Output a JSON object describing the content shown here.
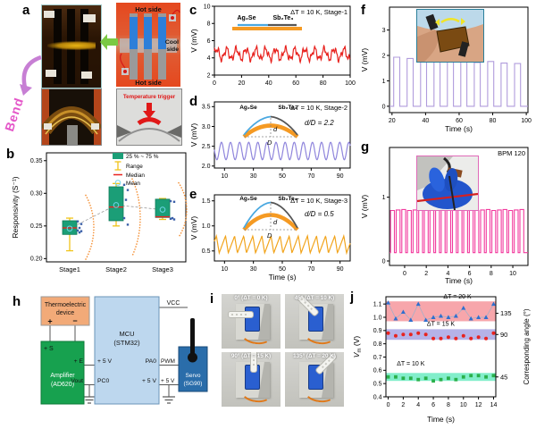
{
  "panel_labels": {
    "a": "a",
    "b": "b",
    "c": "c",
    "d": "d",
    "e": "e",
    "f": "f",
    "g": "g",
    "h": "h",
    "i": "i",
    "j": "j"
  },
  "panel_a": {
    "bend_label": "Bend",
    "hot_side_top": "Hot side",
    "hot_side_bottom": "Hot side",
    "cool_side_line1": "Cool",
    "cool_side_line2": "side",
    "temperature_trigger": "Temperature trigger"
  },
  "panel_h": {
    "thermo_line1": "Thermoelectric",
    "thermo_line2": "device",
    "plus": "+",
    "minus": "−",
    "amp_pin_s": "+ S",
    "amp_line1": "Amplifier",
    "amp_line2": "(AD620)",
    "amp_pin_e": "+ E",
    "amp_pin_vout": "Vout",
    "mcu_line1": "MCU",
    "mcu_line2": "(STM32)",
    "mcu_pin_5v_left": "+ 5 V",
    "mcu_pin_pc0": "PC0",
    "mcu_vcc": "VCC",
    "mcu_pin_pa0": "PA0",
    "mcu_pin_5v_right": "+ 5 V",
    "servo_pin_pwm": "PWM",
    "servo_pin_5v": "+ 5 V",
    "servo_line1": "Servo",
    "servo_line2": "(SG90)"
  },
  "panel_i": {
    "captions": [
      "0° (ΔT = 0 K)",
      "45° (ΔT = 10 K)",
      "90° (ΔT = 15 K)",
      "135° (ΔT = 20 K)"
    ],
    "angles": [
      0,
      45,
      90,
      135
    ]
  },
  "chart_data": [
    {
      "id": "b",
      "type": "box",
      "ylabel": "Responsivity (S⁻¹)",
      "ylim": [
        0.195,
        0.362
      ],
      "yticks": [
        "0.20",
        "0.25",
        "0.30",
        "0.35"
      ],
      "ytick_vals": [
        0.2,
        0.25,
        0.3,
        0.35
      ],
      "categories": [
        "Stage1",
        "Stage2",
        "Stage3"
      ],
      "legend": [
        "25 % ~ 75 %",
        "Range",
        "Median",
        "Mean"
      ],
      "boxes": [
        {
          "q1": 0.237,
          "q3": 0.258,
          "median": 0.247,
          "mean": 0.246,
          "low": 0.212,
          "high": 0.262,
          "points": [
            0.257,
            0.253,
            0.247,
            0.243,
            0.242,
            0.24
          ],
          "violin": [
            0.199,
            0.297
          ]
        },
        {
          "q1": 0.258,
          "q3": 0.31,
          "median": 0.279,
          "mean": 0.282,
          "low": 0.25,
          "high": 0.315,
          "points": [
            0.313,
            0.305,
            0.29,
            0.262,
            0.252
          ],
          "violin": [
            0.204,
            0.322
          ]
        },
        {
          "q1": 0.263,
          "q3": 0.291,
          "median": 0.264,
          "mean": 0.275,
          "low": 0.26,
          "high": 0.292,
          "points": [
            0.288,
            0.287,
            0.262,
            0.261,
            0.26
          ],
          "violin": [
            0.233,
            0.316
          ]
        }
      ],
      "colors": {
        "box": "#1b9e77",
        "whisker": "#f0c419",
        "median": "#e8231f",
        "mean": "#6fd4e8",
        "scatter": "#3a5fa8",
        "violin": "#f5933a",
        "meanline": "#9a9a9a"
      }
    },
    {
      "id": "c",
      "type": "wave",
      "title": "ΔT = 10 K, Stage-1",
      "ylabel": "V (mV)",
      "xlim": [
        0,
        100
      ],
      "ylim": [
        2,
        10
      ],
      "yticks": [
        "2",
        "4",
        "6",
        "8",
        "10"
      ],
      "ytick_vals": [
        2,
        4,
        6,
        8,
        10
      ],
      "xticks": [
        0,
        20,
        40,
        60,
        80,
        100
      ],
      "color": "#e8231f",
      "wave": {
        "min": 3.4,
        "max": 5.5,
        "period": 7.2,
        "shape": "jagged"
      },
      "materials": [
        "Ag₂Se",
        "Sb₂Te₃"
      ],
      "material_colors": [
        "#4aa8e0",
        "#555555"
      ],
      "substrate_color": "#f59a23"
    },
    {
      "id": "d",
      "type": "wave",
      "title": "ΔT = 10 K, Stage-2",
      "ylabel": "V (mV)",
      "xlim": [
        3,
        97
      ],
      "ylim": [
        1.95,
        3.62
      ],
      "yticks": [
        "2.0",
        "2.5",
        "3.0",
        "3.5"
      ],
      "ytick_vals": [
        2.0,
        2.5,
        3.0,
        3.5
      ],
      "xticks": [
        10,
        30,
        50,
        70,
        90
      ],
      "color": "#8f85dc",
      "wave": {
        "min": 2.16,
        "max": 2.6,
        "period": 6.3,
        "shape": "sine"
      },
      "ratio_label": "d/D = 2.2",
      "dim_d": "d",
      "dim_D": "D",
      "materials": [
        "Ag₂Se",
        "Sb₂Te₃"
      ],
      "material_colors": [
        "#4aa8e0",
        "#555555"
      ],
      "substrate_color": "#f59a23"
    },
    {
      "id": "e",
      "type": "wave",
      "title": "ΔT = 10 K, Stage-3",
      "ylabel": "V (mV)",
      "xlabel": "Time (s)",
      "xlim": [
        3,
        97
      ],
      "ylim": [
        0.3,
        1.62
      ],
      "yticks": [
        "0.5",
        "1.0",
        "1.5"
      ],
      "ytick_vals": [
        0.5,
        1.0,
        1.5
      ],
      "xticks": [
        10,
        30,
        50,
        70,
        90
      ],
      "color": "#f2a41c",
      "wave": {
        "min": 0.46,
        "max": 0.8,
        "period": 6.3,
        "shape": "saw"
      },
      "ratio_label": "d/D = 0.5",
      "dim_d": "d",
      "dim_D": "D",
      "materials": [
        "Ag₂Se",
        "Sb₂Te₃"
      ],
      "material_colors": [
        "#4aa8e0",
        "#555555"
      ],
      "substrate_color": "#f59a23"
    },
    {
      "id": "f",
      "type": "pulse",
      "ylabel": "V (mV)",
      "xlabel": "Time (s)",
      "xlim": [
        18.5,
        101
      ],
      "ylim": [
        -0.25,
        3.9
      ],
      "yticks": [
        "0",
        "1",
        "2",
        "3"
      ],
      "ytick_vals": [
        0,
        1,
        2,
        3
      ],
      "xticks": [
        20,
        40,
        60,
        80,
        100
      ],
      "color": "#b09cdc",
      "pulse": {
        "low": 0,
        "start": 21,
        "period": 8,
        "duty": 0.45,
        "highs": [
          1.93,
          1.88,
          1.78,
          1.8,
          1.82,
          1.76,
          1.72,
          1.76,
          1.7,
          1.68
        ]
      }
    },
    {
      "id": "g",
      "type": "pulse",
      "title": "BPM 120",
      "ylabel": "V (mV)",
      "xlabel": "Time (s)",
      "xlim": [
        -1.4,
        11.4
      ],
      "ylim": [
        -0.07,
        1.78
      ],
      "yticks": [
        "0",
        "1"
      ],
      "ytick_vals": [
        0,
        1
      ],
      "xticks": [
        0,
        2,
        4,
        6,
        8,
        10
      ],
      "color": "#f23a9e",
      "pulse": {
        "low": 0.13,
        "start": -1.3,
        "period": 0.52,
        "duty": 0.68,
        "high": 0.8,
        "count": 24
      }
    },
    {
      "id": "j",
      "type": "scatter",
      "ylabel_base": "V",
      "ylabel_sub": "m",
      "ylabel_unit": " (V)",
      "xlabel": "Time (s)",
      "right_label": "Corresponding angle (°)",
      "xlim": [
        -0.3,
        14.3
      ],
      "ylim": [
        0.4,
        1.155
      ],
      "yticks": [
        "0.4",
        "0.5",
        "0.6",
        "0.7",
        "0.8",
        "0.9",
        "1.0",
        "1.1"
      ],
      "ytick_vals": [
        0.4,
        0.5,
        0.6,
        0.7,
        0.8,
        0.9,
        1.0,
        1.1
      ],
      "xticks": [
        0,
        2,
        4,
        6,
        8,
        10,
        12,
        14
      ],
      "x": [
        0,
        1,
        2,
        3,
        4,
        5,
        6,
        7,
        8,
        9,
        10,
        11,
        12,
        13,
        14
      ],
      "series": [
        {
          "name": "ΔT = 20 K",
          "marker": "triangle",
          "color": "#2e6fce",
          "line": true,
          "band": [
            0.97,
            1.12
          ],
          "band_color": "#f7a6ab",
          "angle_label": "135",
          "angle_y": 1.03,
          "values": [
            1.11,
            0.99,
            1.04,
            0.98,
            1.1,
            0.98,
            1.0,
            1.01,
            1.0,
            1.01,
            1.07,
            0.99,
            1.0,
            1.0,
            1.1
          ]
        },
        {
          "name": "ΔT = 15 K",
          "marker": "circle",
          "color": "#e8231f",
          "line": false,
          "band": [
            0.83,
            0.91
          ],
          "band_color": "#b5b2e8",
          "angle_label": "90",
          "angle_y": 0.87,
          "values": [
            0.88,
            0.86,
            0.87,
            0.87,
            0.88,
            0.87,
            0.84,
            0.84,
            0.85,
            0.84,
            0.86,
            0.84,
            0.85,
            0.84,
            0.88
          ]
        },
        {
          "name": "ΔT = 10 K",
          "marker": "square",
          "color": "#2ab04a",
          "line": false,
          "band": [
            0.52,
            0.58
          ],
          "band_color": "#82eecb",
          "angle_label": "45",
          "angle_y": 0.55,
          "values": [
            0.55,
            0.55,
            0.54,
            0.54,
            0.53,
            0.54,
            0.52,
            0.53,
            0.54,
            0.53,
            0.55,
            0.56,
            0.56,
            0.55,
            0.56
          ]
        }
      ]
    }
  ]
}
